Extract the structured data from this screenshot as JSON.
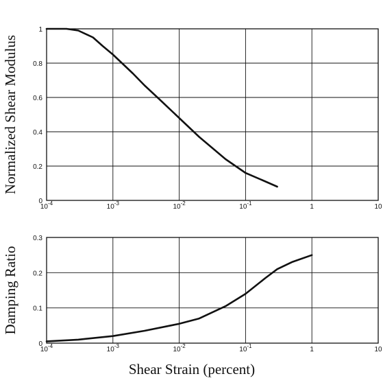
{
  "chart_data": [
    {
      "type": "line",
      "title": "",
      "ylabel": "Normalized Shear Modulus",
      "xlabel": "",
      "xscale": "log",
      "xlim": [
        0.0001,
        10
      ],
      "ylim": [
        0,
        1
      ],
      "grid": true,
      "x_ticks": [
        {
          "value": 0.0001,
          "base": "10",
          "exp": "-4"
        },
        {
          "value": 0.001,
          "base": "10",
          "exp": "-3"
        },
        {
          "value": 0.01,
          "base": "10",
          "exp": "-2"
        },
        {
          "value": 0.1,
          "base": "10",
          "exp": "-1"
        },
        {
          "value": 1,
          "base": "1",
          "exp": ""
        },
        {
          "value": 10,
          "base": "10",
          "exp": ""
        }
      ],
      "y_ticks": [
        {
          "value": 0,
          "label": "0"
        },
        {
          "value": 0.2,
          "label": "0.2"
        },
        {
          "value": 0.4,
          "label": "0.4"
        },
        {
          "value": 0.6,
          "label": "0.6"
        },
        {
          "value": 0.8,
          "label": "0.8"
        },
        {
          "value": 1,
          "label": "1"
        }
      ],
      "series": [
        {
          "x": [
            0.0001,
            0.0002,
            0.0003,
            0.0005,
            0.0007,
            0.001,
            0.002,
            0.003,
            0.005,
            0.01,
            0.02,
            0.05,
            0.1,
            0.2,
            0.3
          ],
          "y": [
            1.0,
            1.0,
            0.99,
            0.95,
            0.9,
            0.85,
            0.74,
            0.67,
            0.59,
            0.48,
            0.37,
            0.24,
            0.16,
            0.11,
            0.08
          ]
        }
      ]
    },
    {
      "type": "line",
      "title": "",
      "ylabel": "Damping Ratio",
      "xlabel": "Shear Strain (percent)",
      "xscale": "log",
      "xlim": [
        0.0001,
        10
      ],
      "ylim": [
        0,
        0.3
      ],
      "grid": true,
      "x_ticks": [
        {
          "value": 0.0001,
          "base": "10",
          "exp": "-4"
        },
        {
          "value": 0.001,
          "base": "10",
          "exp": "-3"
        },
        {
          "value": 0.01,
          "base": "10",
          "exp": "-2"
        },
        {
          "value": 0.1,
          "base": "10",
          "exp": "-1"
        },
        {
          "value": 1,
          "base": "1",
          "exp": ""
        },
        {
          "value": 10,
          "base": "10",
          "exp": ""
        }
      ],
      "y_ticks": [
        {
          "value": 0,
          "label": "0"
        },
        {
          "value": 0.1,
          "label": "0.1"
        },
        {
          "value": 0.2,
          "label": "0.2"
        },
        {
          "value": 0.3,
          "label": "0.3"
        }
      ],
      "series": [
        {
          "x": [
            0.0001,
            0.0003,
            0.001,
            0.003,
            0.01,
            0.02,
            0.05,
            0.1,
            0.2,
            0.3,
            0.5,
            1
          ],
          "y": [
            0.005,
            0.01,
            0.02,
            0.035,
            0.055,
            0.07,
            0.105,
            0.14,
            0.185,
            0.21,
            0.23,
            0.25
          ]
        }
      ]
    }
  ]
}
